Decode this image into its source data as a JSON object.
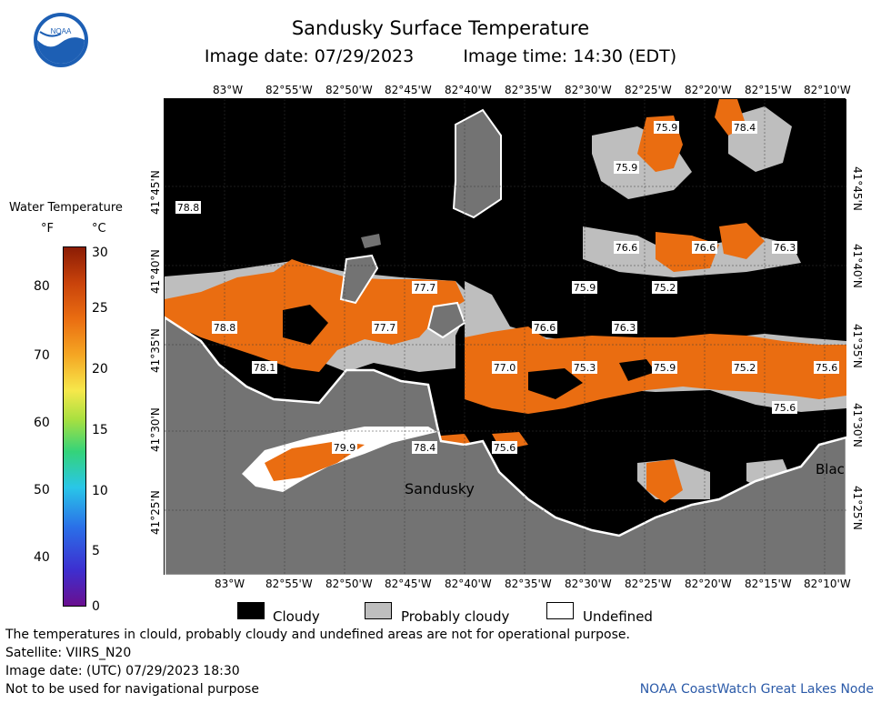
{
  "header": {
    "title": "Sandusky Surface Temperature",
    "image_date": "Image date: 07/29/2023",
    "image_time": "Image time: 14:30 (EDT)"
  },
  "logo": {
    "text": "NOAA"
  },
  "map": {
    "lon_labels": [
      "83°W",
      "82°55'W",
      "82°50'W",
      "82°45'W",
      "82°40'W",
      "82°35'W",
      "82°30'W",
      "82°25'W",
      "82°20'W",
      "82°15'W",
      "82°10'W"
    ],
    "lat_labels": [
      "41°45'N",
      "41°40'N",
      "41°35'N",
      "41°30'N",
      "41°25'N"
    ],
    "place_labels": [
      "Sandusky",
      "Blac"
    ],
    "temperatures": [
      "75.9",
      "78.4",
      "75.9",
      "78.8",
      "76.6",
      "76.6",
      "76.3",
      "77.7",
      "75.9",
      "75.2",
      "78.8",
      "77.7",
      "76.6",
      "76.3",
      "78.1",
      "77.0",
      "75.3",
      "75.9",
      "75.2",
      "75.6",
      "75.6",
      "79.9",
      "78.4",
      "75.6"
    ]
  },
  "legend": {
    "title": "Water Temperature",
    "unit_f": "°F",
    "unit_c": "°C",
    "fahrenheit_ticks": [
      "80",
      "70",
      "60",
      "50",
      "40"
    ],
    "celsius_ticks": [
      "30",
      "25",
      "20",
      "15",
      "10",
      "5",
      "0"
    ],
    "scale_min_c": 0,
    "scale_max_c": 30
  },
  "key": {
    "cloudy": "Cloudy",
    "probably_cloudy": "Probably cloudy",
    "undefined": "Undefined"
  },
  "footer": {
    "disclaimer": "The temperatures in clould, probably cloudy and undefined areas are not for operational purpose.",
    "satellite": "Satellite: VIIRS_N20",
    "utc_date": "Image date: (UTC) 07/29/2023  18:30",
    "navigation": "Not to be used for navigational purpose",
    "credit": "NOAA CoastWatch Great Lakes Node"
  },
  "colors": {
    "cloudy": "#000000",
    "probably_cloudy": "#bebebe",
    "land": "#737373",
    "water_warm": "#ea6d11",
    "undefined": "#ffffff"
  }
}
